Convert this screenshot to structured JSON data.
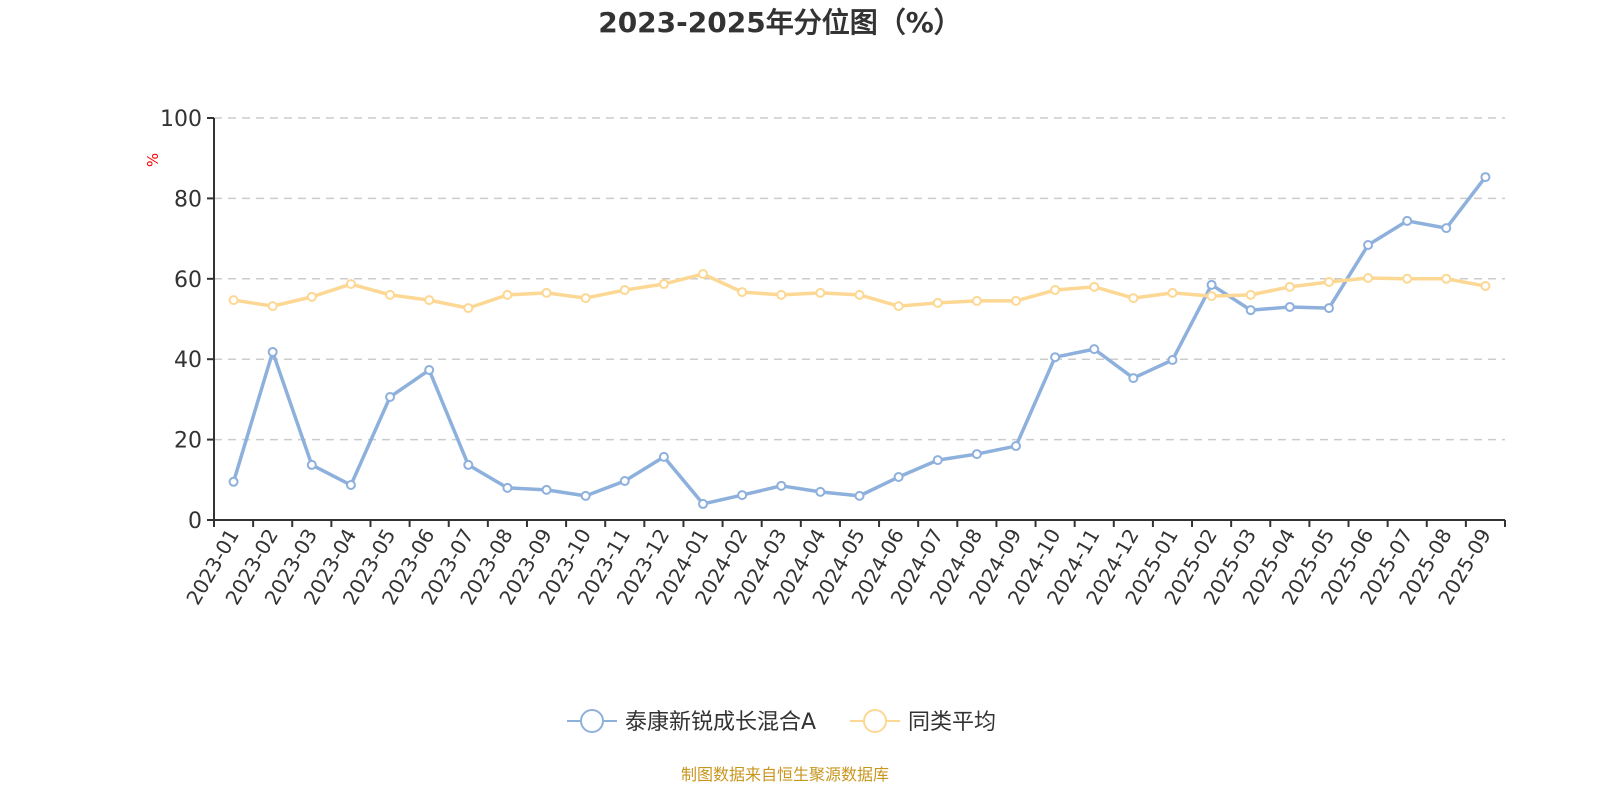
{
  "chart_data": {
    "type": "line",
    "title": "2023-2025年分位图（%）",
    "ylabel": "%",
    "xlabel": "",
    "ylim": [
      0,
      100
    ],
    "yticks": [
      0,
      20,
      40,
      60,
      80,
      100
    ],
    "grid": true,
    "legend_position": "bottom-center",
    "categories": [
      "2023-01",
      "2023-02",
      "2023-03",
      "2023-04",
      "2023-05",
      "2023-06",
      "2023-07",
      "2023-08",
      "2023-09",
      "2023-10",
      "2023-11",
      "2023-12",
      "2024-01",
      "2024-02",
      "2024-03",
      "2024-04",
      "2024-05",
      "2024-06",
      "2024-07",
      "2024-08",
      "2024-09",
      "2024-10",
      "2024-11",
      "2024-12",
      "2025-01",
      "2025-02",
      "2025-03",
      "2025-04",
      "2025-05",
      "2025-06",
      "2025-07",
      "2025-08",
      "2025-09"
    ],
    "series": [
      {
        "name": "泰康新锐成长混合A",
        "color": "#8eb0dc",
        "values": [
          9.5,
          41.8,
          13.7,
          8.7,
          30.6,
          37.3,
          13.7,
          8.0,
          7.5,
          6.0,
          9.7,
          15.7,
          4.0,
          6.2,
          8.5,
          7.0,
          6.0,
          10.7,
          14.9,
          16.4,
          18.4,
          40.5,
          42.5,
          35.3,
          39.8,
          58.5,
          52.2,
          53.0,
          52.7,
          68.4,
          74.4,
          72.6,
          85.3
        ]
      },
      {
        "name": "同类平均",
        "color": "#fcd894",
        "values": [
          54.7,
          53.2,
          55.5,
          58.7,
          56.0,
          54.7,
          52.7,
          56.0,
          56.5,
          55.2,
          57.2,
          58.7,
          61.2,
          56.7,
          56.0,
          56.5,
          56.0,
          53.2,
          54.0,
          54.5,
          54.5,
          57.2,
          58.0,
          55.2,
          56.5,
          55.7,
          56.0,
          58.0,
          59.2,
          60.2,
          60.0,
          60.0,
          58.2
        ]
      }
    ],
    "source": "制图数据来自恒生聚源数据库"
  }
}
